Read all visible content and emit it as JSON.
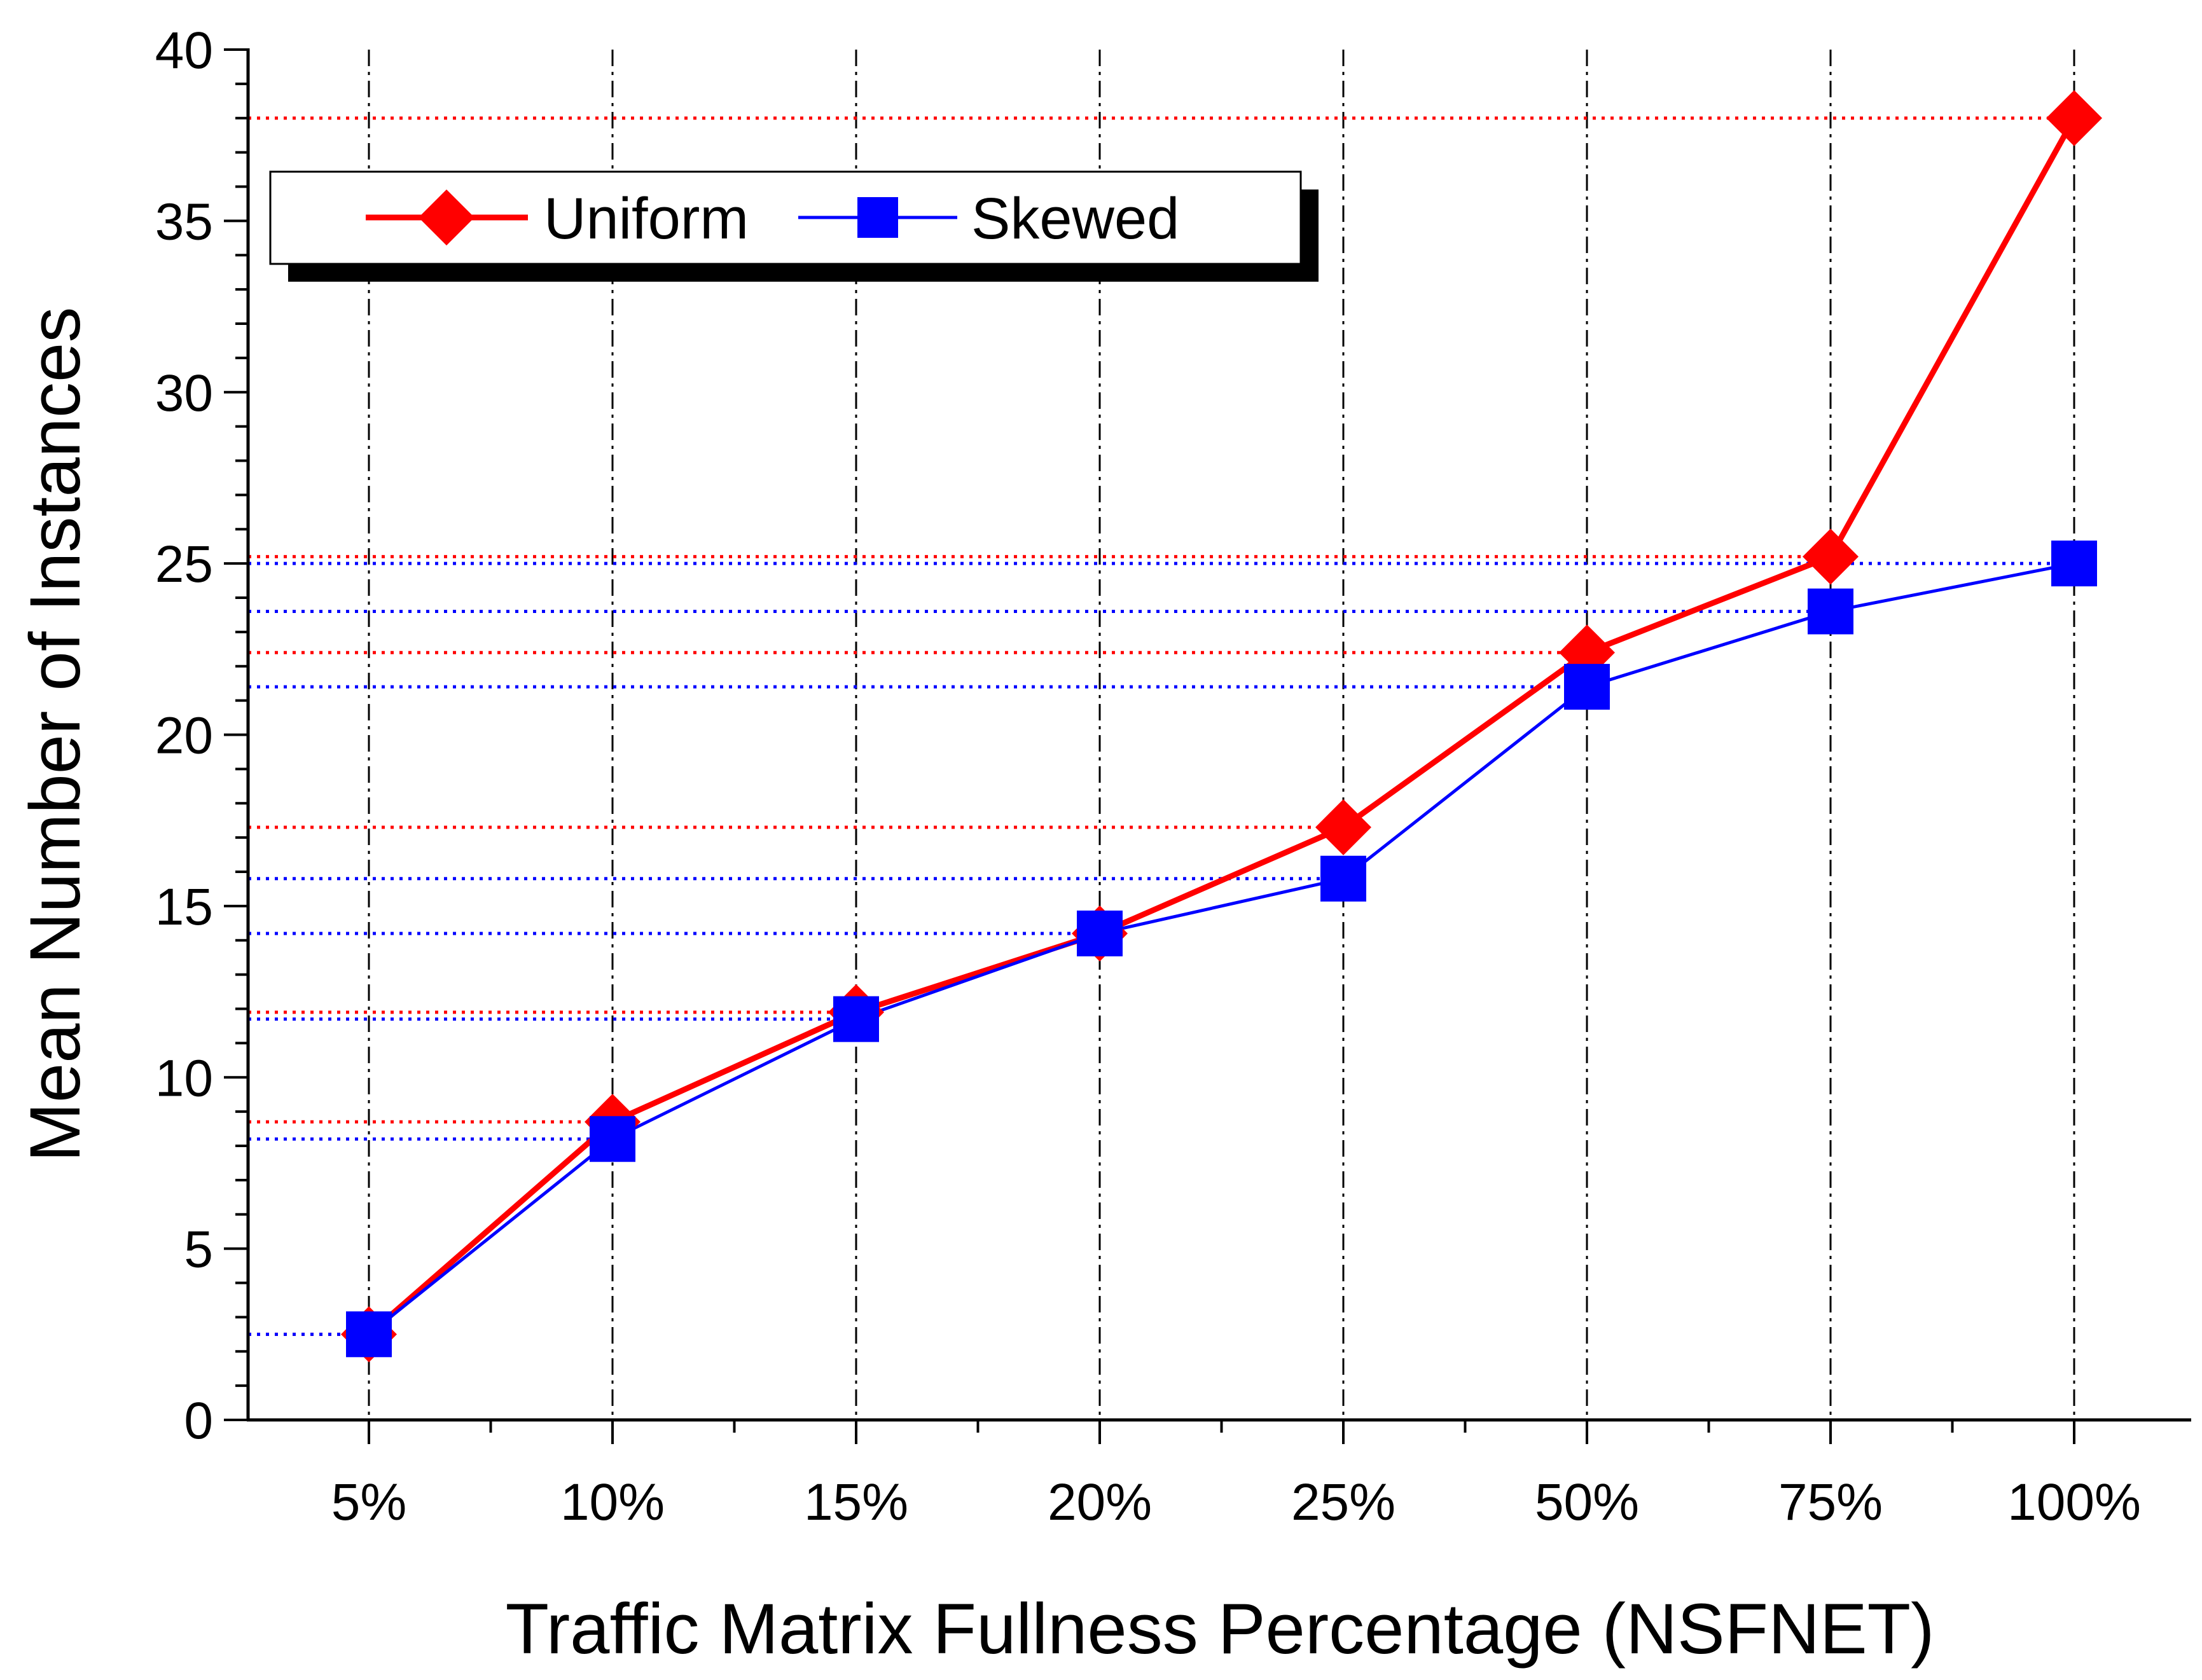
{
  "chart_data": {
    "type": "line",
    "title": "",
    "xlabel": "Traffic Matrix Fullness Percentage (NSFNET)",
    "ylabel": "Mean Number of Instances",
    "categories": [
      "5%",
      "10%",
      "15%",
      "20%",
      "25%",
      "50%",
      "75%",
      "100%"
    ],
    "ylim": [
      0,
      40
    ],
    "yticks": [
      "0",
      "5",
      "10",
      "15",
      "20",
      "25",
      "30",
      "35",
      "40"
    ],
    "grid": "vertical dash-dot lines at each category; dotted horizontal guide lines from the y-axis to each data point",
    "legend_position": "top-left",
    "series": [
      {
        "name": "Uniform",
        "color": "#ff0000",
        "marker": "diamond",
        "values": [
          2.5,
          8.7,
          11.9,
          14.2,
          17.3,
          22.4,
          25.2,
          38
        ]
      },
      {
        "name": "Skewed",
        "color": "#0000ff",
        "marker": "square",
        "values": [
          2.5,
          8.2,
          11.7,
          14.2,
          15.8,
          21.4,
          23.6,
          25
        ]
      }
    ]
  }
}
